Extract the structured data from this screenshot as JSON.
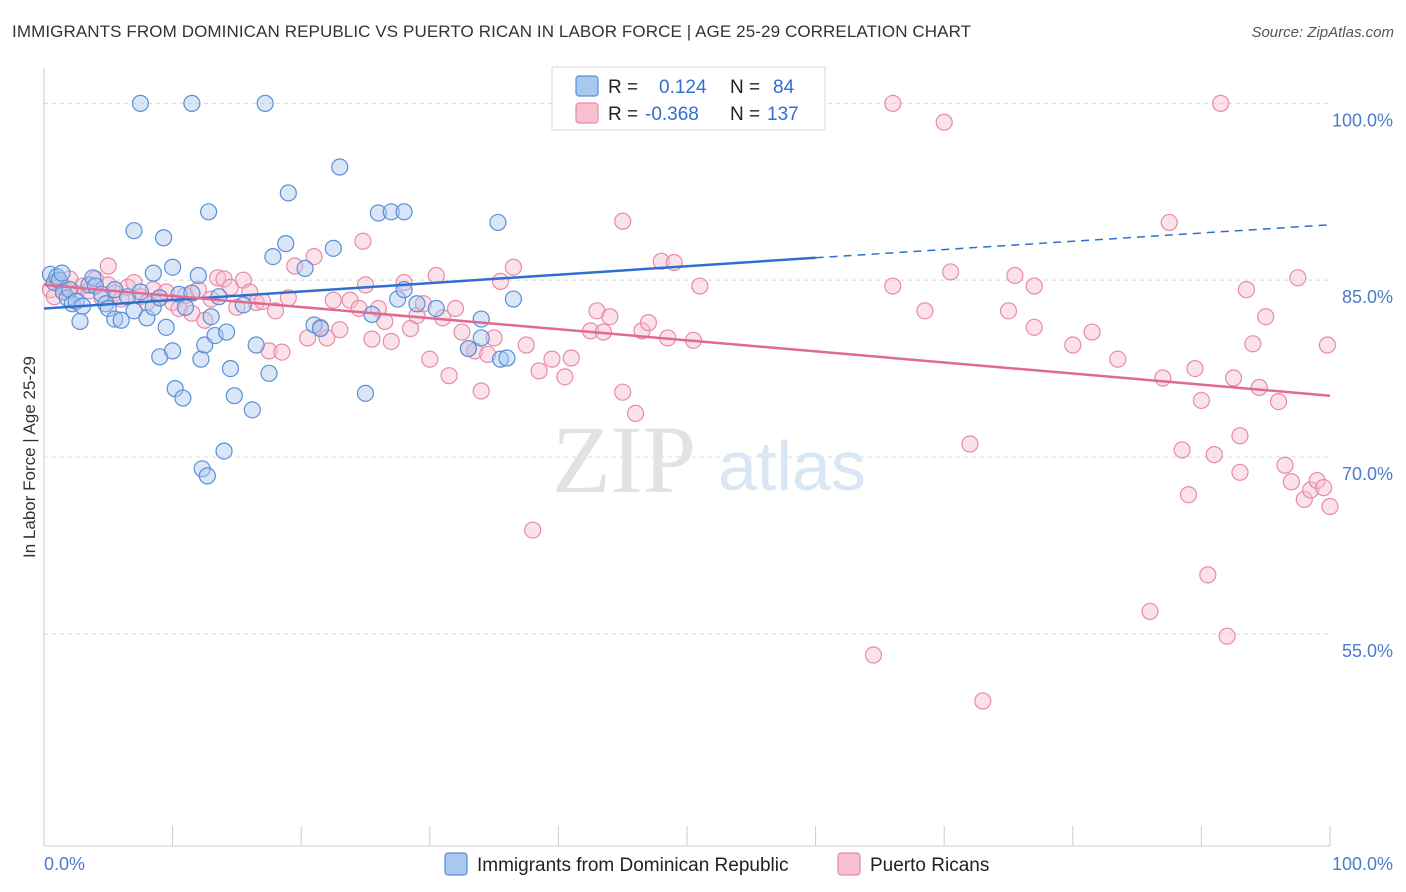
{
  "title": "IMMIGRANTS FROM DOMINICAN REPUBLIC VS PUERTO RICAN IN LABOR FORCE | AGE 25-29 CORRELATION CHART",
  "source": "Source: ZipAtlas.com",
  "watermark": {
    "zip": "ZIP",
    "atlas": "atlas"
  },
  "colors": {
    "blue_fill": "#a9c8f0",
    "blue_stroke": "#5b8fd6",
    "blue_line": "#2f6fcf",
    "pink_fill": "#f7bfd0",
    "pink_stroke": "#e88aa8",
    "pink_line": "#e06a92",
    "tick_text": "#4a7cc9",
    "grid": "#d8d8d8",
    "value_blue": "#2f6fcf",
    "value_pink": "#e0557f"
  },
  "legend": {
    "r_label": "R =",
    "n_label": "N =",
    "blue": {
      "r": "0.124",
      "n": "84"
    },
    "pink": {
      "r": "-0.368",
      "n": "137"
    }
  },
  "chart_data": {
    "type": "scatter",
    "title": "IMMIGRANTS FROM DOMINICAN REPUBLIC VS PUERTO RICAN IN LABOR FORCE | AGE 25-29 CORRELATION CHART",
    "xlabel": "",
    "ylabel": "In Labor Force | Age 25-29",
    "xlim": [
      0,
      100
    ],
    "ylim": [
      37,
      103
    ],
    "x_tick_labels": [
      "0.0%",
      "100.0%"
    ],
    "y_ticks": [
      {
        "value": 100,
        "label": "100.0%"
      },
      {
        "value": 85,
        "label": "85.0%"
      },
      {
        "value": 70,
        "label": "70.0%"
      },
      {
        "value": 55,
        "label": "55.0%"
      }
    ],
    "grid": true,
    "legend_position": "top-center",
    "series": [
      {
        "name": "Immigrants from Dominican Republic",
        "color": "blue",
        "trend": {
          "x": [
            0,
            60
          ],
          "y": [
            82.6,
            86.9
          ],
          "dashed_extension": {
            "x": [
              60,
              100
            ],
            "y": [
              86.9,
              89.7
            ]
          }
        },
        "points": [
          [
            0.5,
            85.5
          ],
          [
            0.8,
            84.8
          ],
          [
            1.0,
            85.3
          ],
          [
            1.2,
            85.0
          ],
          [
            1.4,
            85.6
          ],
          [
            1.5,
            84.0
          ],
          [
            1.8,
            83.5
          ],
          [
            2.0,
            84.2
          ],
          [
            2.2,
            83.0
          ],
          [
            2.5,
            83.2
          ],
          [
            2.8,
            81.5
          ],
          [
            3.0,
            82.8
          ],
          [
            3.5,
            84.6
          ],
          [
            3.8,
            85.2
          ],
          [
            4.0,
            84.5
          ],
          [
            4.5,
            83.8
          ],
          [
            4.8,
            83.0
          ],
          [
            5.0,
            82.6
          ],
          [
            5.5,
            84.2
          ],
          [
            5.5,
            81.7
          ],
          [
            6.0,
            81.6
          ],
          [
            6.5,
            83.6
          ],
          [
            7.0,
            82.4
          ],
          [
            7.5,
            84.0
          ],
          [
            7.0,
            89.2
          ],
          [
            7.5,
            100.0
          ],
          [
            8.0,
            81.8
          ],
          [
            8.5,
            82.7
          ],
          [
            8.5,
            85.6
          ],
          [
            9.0,
            83.5
          ],
          [
            9.0,
            78.5
          ],
          [
            9.3,
            88.6
          ],
          [
            9.5,
            81.0
          ],
          [
            10.0,
            79.0
          ],
          [
            10.0,
            86.1
          ],
          [
            10.2,
            75.8
          ],
          [
            10.5,
            83.8
          ],
          [
            10.8,
            75.0
          ],
          [
            11.0,
            82.7
          ],
          [
            11.5,
            83.9
          ],
          [
            11.5,
            100.0
          ],
          [
            12.0,
            85.4
          ],
          [
            12.2,
            78.3
          ],
          [
            12.3,
            69.0
          ],
          [
            12.5,
            79.5
          ],
          [
            12.7,
            68.4
          ],
          [
            12.8,
            90.8
          ],
          [
            13.0,
            81.9
          ],
          [
            13.3,
            80.3
          ],
          [
            13.6,
            83.6
          ],
          [
            14.0,
            70.5
          ],
          [
            14.2,
            80.6
          ],
          [
            14.5,
            77.5
          ],
          [
            14.8,
            75.2
          ],
          [
            15.5,
            82.9
          ],
          [
            16.2,
            74.0
          ],
          [
            16.5,
            79.5
          ],
          [
            17.2,
            100.0
          ],
          [
            17.5,
            77.1
          ],
          [
            17.8,
            87.0
          ],
          [
            18.8,
            88.1
          ],
          [
            19.0,
            92.4
          ],
          [
            20.3,
            86.0
          ],
          [
            21.0,
            81.2
          ],
          [
            21.5,
            80.9
          ],
          [
            22.5,
            87.7
          ],
          [
            23.0,
            94.6
          ],
          [
            25.0,
            75.4
          ],
          [
            25.5,
            82.1
          ],
          [
            26.0,
            90.7
          ],
          [
            27.0,
            90.8
          ],
          [
            27.5,
            83.4
          ],
          [
            28.0,
            90.8
          ],
          [
            28.0,
            84.2
          ],
          [
            29.0,
            83.0
          ],
          [
            30.5,
            82.6
          ],
          [
            33.0,
            79.2
          ],
          [
            34.0,
            81.7
          ],
          [
            34.0,
            80.1
          ],
          [
            35.5,
            78.3
          ],
          [
            35.3,
            89.9
          ],
          [
            36.0,
            78.4
          ],
          [
            36.5,
            83.4
          ],
          [
            42.0,
            100.0
          ]
        ]
      },
      {
        "name": "Puerto Ricans",
        "color": "pink",
        "trend": {
          "x": [
            0,
            100
          ],
          "y": [
            84.6,
            75.2
          ]
        },
        "points": [
          [
            0.5,
            84.2
          ],
          [
            0.8,
            83.6
          ],
          [
            1.0,
            85.0
          ],
          [
            1.5,
            84.4
          ],
          [
            2.0,
            85.1
          ],
          [
            2.5,
            83.9
          ],
          [
            3.0,
            84.5
          ],
          [
            3.5,
            84.1
          ],
          [
            4.0,
            85.1
          ],
          [
            4.5,
            83.5
          ],
          [
            5.0,
            84.6
          ],
          [
            5.0,
            86.2
          ],
          [
            5.5,
            83.9
          ],
          [
            6.0,
            83.4
          ],
          [
            6.5,
            84.4
          ],
          [
            7.0,
            84.8
          ],
          [
            7.5,
            83.6
          ],
          [
            8.0,
            83.1
          ],
          [
            8.5,
            84.2
          ],
          [
            9.0,
            83.5
          ],
          [
            9.5,
            84.0
          ],
          [
            10.0,
            83.1
          ],
          [
            10.5,
            82.6
          ],
          [
            11.0,
            83.7
          ],
          [
            11.5,
            82.2
          ],
          [
            12.0,
            84.2
          ],
          [
            12.5,
            81.6
          ],
          [
            13.0,
            83.4
          ],
          [
            13.5,
            85.2
          ],
          [
            14.0,
            85.1
          ],
          [
            14.5,
            84.4
          ],
          [
            15.0,
            82.7
          ],
          [
            15.5,
            85.0
          ],
          [
            16.0,
            84.0
          ],
          [
            16.5,
            83.1
          ],
          [
            17.0,
            83.2
          ],
          [
            17.5,
            79.0
          ],
          [
            18.0,
            82.4
          ],
          [
            18.5,
            78.9
          ],
          [
            19.0,
            83.5
          ],
          [
            19.5,
            86.2
          ],
          [
            20.5,
            80.1
          ],
          [
            21.0,
            87.0
          ],
          [
            21.5,
            81.0
          ],
          [
            22.0,
            80.1
          ],
          [
            22.5,
            83.3
          ],
          [
            23.0,
            80.8
          ],
          [
            23.8,
            83.3
          ],
          [
            24.5,
            82.6
          ],
          [
            24.8,
            88.3
          ],
          [
            25.0,
            84.6
          ],
          [
            25.5,
            80.0
          ],
          [
            26.0,
            82.6
          ],
          [
            26.5,
            81.5
          ],
          [
            27.0,
            79.8
          ],
          [
            28.0,
            84.8
          ],
          [
            28.5,
            80.9
          ],
          [
            29.0,
            82.0
          ],
          [
            29.5,
            83.0
          ],
          [
            30.0,
            78.3
          ],
          [
            30.5,
            85.4
          ],
          [
            31.0,
            81.8
          ],
          [
            31.5,
            76.9
          ],
          [
            32.0,
            82.6
          ],
          [
            32.5,
            80.6
          ],
          [
            33.0,
            79.2
          ],
          [
            33.5,
            79.0
          ],
          [
            34.0,
            75.6
          ],
          [
            34.5,
            78.7
          ],
          [
            35.0,
            80.1
          ],
          [
            35.5,
            84.9
          ],
          [
            36.5,
            86.1
          ],
          [
            37.5,
            79.5
          ],
          [
            38.0,
            63.8
          ],
          [
            38.5,
            77.3
          ],
          [
            39.5,
            78.3
          ],
          [
            40.5,
            76.8
          ],
          [
            41.0,
            78.4
          ],
          [
            42.5,
            80.7
          ],
          [
            43.0,
            82.4
          ],
          [
            43.5,
            80.6
          ],
          [
            44.0,
            81.9
          ],
          [
            45.0,
            75.5
          ],
          [
            45.0,
            90.0
          ],
          [
            46.0,
            73.7
          ],
          [
            46.5,
            80.7
          ],
          [
            47.0,
            81.4
          ],
          [
            48.0,
            86.6
          ],
          [
            48.5,
            80.1
          ],
          [
            49.0,
            86.5
          ],
          [
            50.5,
            79.9
          ],
          [
            51.0,
            84.5
          ],
          [
            55.5,
            100.0
          ],
          [
            59.5,
            100.0
          ],
          [
            64.5,
            53.2
          ],
          [
            66.0,
            84.5
          ],
          [
            66.0,
            100.0
          ],
          [
            68.5,
            82.4
          ],
          [
            70.0,
            98.4
          ],
          [
            70.5,
            85.7
          ],
          [
            72.0,
            71.1
          ],
          [
            73.0,
            49.3
          ],
          [
            75.0,
            82.4
          ],
          [
            75.5,
            85.4
          ],
          [
            77.0,
            81.0
          ],
          [
            77.0,
            84.5
          ],
          [
            80.0,
            79.5
          ],
          [
            81.5,
            80.6
          ],
          [
            83.5,
            78.3
          ],
          [
            86.0,
            56.9
          ],
          [
            87.0,
            76.7
          ],
          [
            87.5,
            89.9
          ],
          [
            88.5,
            70.6
          ],
          [
            89.0,
            66.8
          ],
          [
            89.5,
            77.5
          ],
          [
            90.0,
            74.8
          ],
          [
            90.5,
            60.0
          ],
          [
            91.0,
            70.2
          ],
          [
            91.5,
            100.0
          ],
          [
            92.0,
            54.8
          ],
          [
            92.5,
            76.7
          ],
          [
            93.0,
            68.7
          ],
          [
            93.0,
            71.8
          ],
          [
            93.5,
            84.2
          ],
          [
            94.0,
            79.6
          ],
          [
            94.5,
            75.9
          ],
          [
            95.0,
            81.9
          ],
          [
            96.0,
            74.7
          ],
          [
            96.5,
            69.3
          ],
          [
            97.0,
            67.9
          ],
          [
            97.5,
            85.2
          ],
          [
            98.0,
            66.4
          ],
          [
            98.5,
            67.2
          ],
          [
            99.0,
            68.0
          ],
          [
            99.5,
            67.4
          ],
          [
            100.0,
            65.8
          ],
          [
            99.8,
            79.5
          ]
        ]
      }
    ]
  }
}
